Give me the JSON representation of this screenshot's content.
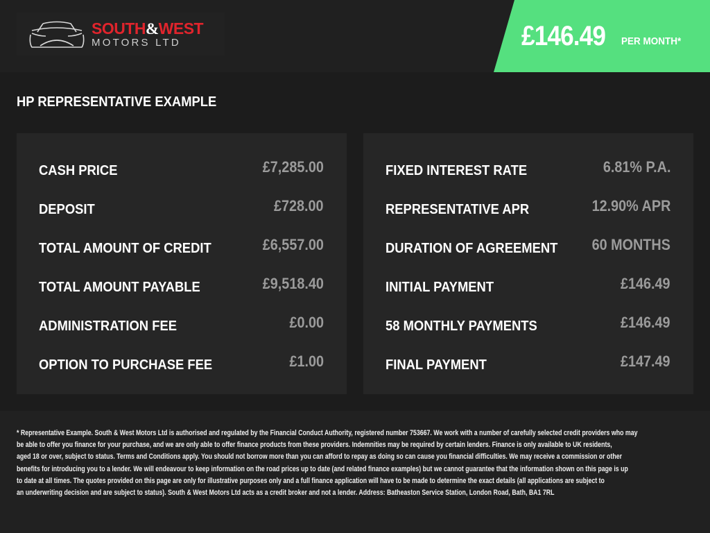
{
  "brand": {
    "name_line1_a": "SOUTH",
    "name_line1_amp": "&",
    "name_line1_b": "WEST",
    "name_line2": "MOTORS LTD",
    "colors": {
      "red": "#e0242c",
      "green": "#55e07f"
    },
    "logo_icon": "car-outline-icon"
  },
  "price": {
    "amount": "£146.49",
    "label": "PER MONTH*"
  },
  "section_title": "HP REPRESENTATIVE EXAMPLE",
  "left_rows": [
    {
      "label": "CASH PRICE",
      "value": "£7,285.00"
    },
    {
      "label": "DEPOSIT",
      "value": "£728.00"
    },
    {
      "label": "TOTAL AMOUNT OF CREDIT",
      "value": "£6,557.00"
    },
    {
      "label": "TOTAL AMOUNT PAYABLE",
      "value": "£9,518.40"
    },
    {
      "label": "ADMINISTRATION FEE",
      "value": "£0.00"
    },
    {
      "label": "OPTION TO PURCHASE FEE",
      "value": "£1.00"
    }
  ],
  "right_rows": [
    {
      "label": "FIXED INTEREST RATE",
      "value": "6.81% P.A."
    },
    {
      "label": "REPRESENTATIVE APR",
      "value": "12.90% APR"
    },
    {
      "label": "DURATION OF AGREEMENT",
      "value": "60 MONTHS"
    },
    {
      "label": "INITIAL PAYMENT",
      "value": "£146.49"
    },
    {
      "label": "58 MONTHLY PAYMENTS",
      "value": "£146.49"
    },
    {
      "label": "FINAL PAYMENT",
      "value": "£147.49"
    }
  ],
  "disclaimer_lines": [
    "* Representative Example. South & West Motors Ltd is authorised and regulated by the Financial Conduct Authority, registered number 753667. We work with a number of carefully selected credit providers who may",
    "be able to offer you finance for your purchase, and we are only able to offer finance products from these providers. Indemnities may be required by certain lenders. Finance is only available to UK residents,",
    "aged 18 or over, subject to status. Terms and Conditions apply. You should not borrow more than you can afford to repay as doing so can cause you financial difficulties. We may receive a commission or other",
    "benefits for introducing you to a lender. We will endeavour to keep information on the road prices up to date (and related finance examples) but we cannot guarantee that the information shown on this page is up",
    "to date at all times. The quotes provided on this page are only for illustrative purposes only and a full finance application will have to be made to determine the exact details (all applications are subject to",
    "an underwriting decision and are subject to status). South & West Motors Ltd acts as a credit broker and not a lender. Address: Batheaston Service Station, London Road, Bath, BA1 7RL"
  ]
}
